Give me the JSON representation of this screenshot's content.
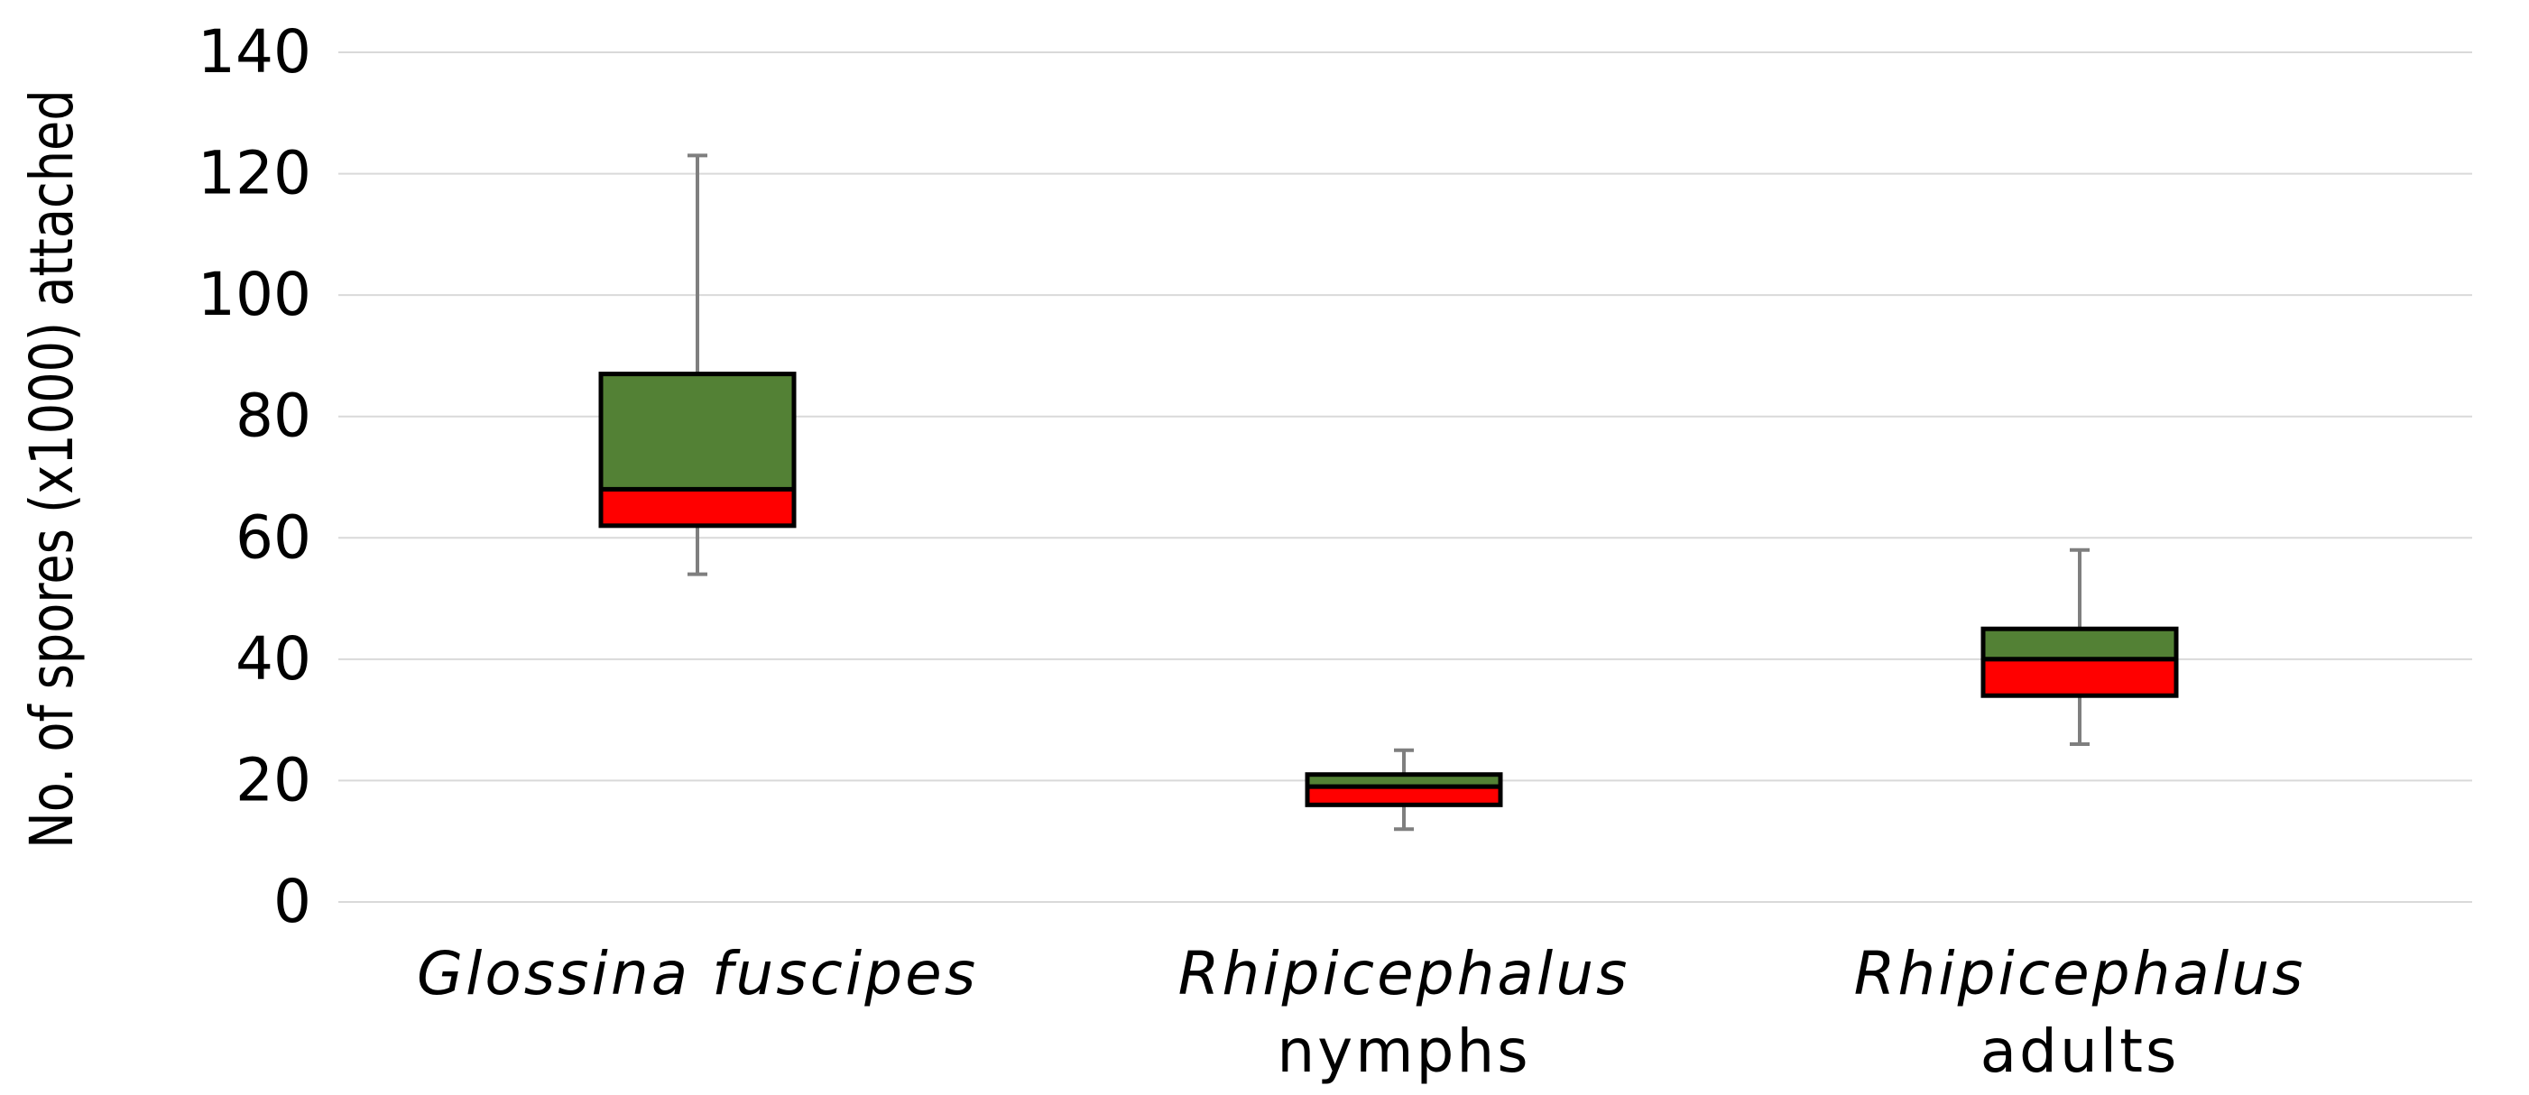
{
  "chart_data": {
    "type": "box",
    "title": "",
    "xlabel": "",
    "ylabel": "No. of spores (x1000) attached",
    "ylim": [
      0,
      140
    ],
    "yticks": [
      0,
      20,
      40,
      60,
      80,
      100,
      120,
      140
    ],
    "ytick_labels": [
      "0",
      "20",
      "40",
      "60",
      "80",
      "100",
      "120",
      "140"
    ],
    "grid": true,
    "legend": "none",
    "colors": {
      "upper_box": "#538135",
      "lower_box": "#ff0000",
      "box_border": "#000000",
      "whisker": "#7f7f7f",
      "grid": "#d9d9d9"
    },
    "categories": [
      {
        "lines": [
          {
            "text": "Glossina fuscipes",
            "italic": true
          }
        ]
      },
      {
        "lines": [
          {
            "text": "Rhipicephalus",
            "italic": true
          },
          {
            "text": "nymphs",
            "italic": false
          }
        ]
      },
      {
        "lines": [
          {
            "text": "Rhipicephalus",
            "italic": true
          },
          {
            "text": "adults",
            "italic": false
          }
        ]
      }
    ],
    "boxes": [
      {
        "min": 54,
        "q1": 62,
        "median": 68,
        "q3": 87,
        "max": 123
      },
      {
        "min": 12,
        "q1": 16,
        "median": 19,
        "q3": 21,
        "max": 25
      },
      {
        "min": 26,
        "q1": 34,
        "median": 40,
        "q3": 45,
        "max": 58
      }
    ]
  }
}
